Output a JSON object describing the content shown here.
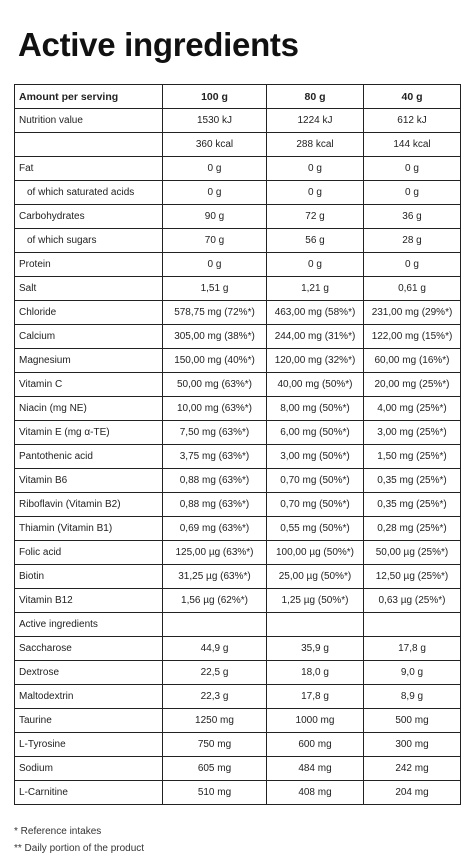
{
  "title": "Active ingredients",
  "header": [
    "Amount per serving",
    "100 g",
    "80 g",
    "40 g"
  ],
  "rows": [
    {
      "name": "Nutrition value",
      "v": [
        "1530 kJ",
        "1224 kJ",
        "612 kJ"
      ]
    },
    {
      "name": "",
      "v": [
        "360 kcal",
        "288 kcal",
        "144 kcal"
      ]
    },
    {
      "name": "Fat",
      "v": [
        "0 g",
        "0 g",
        "0 g"
      ]
    },
    {
      "name": "of which saturated acids",
      "sub": true,
      "v": [
        "0 g",
        "0 g",
        "0 g"
      ]
    },
    {
      "name": "Carbohydrates",
      "v": [
        "90 g",
        "72 g",
        "36 g"
      ]
    },
    {
      "name": "of which sugars",
      "sub": true,
      "v": [
        "70 g",
        "56 g",
        "28 g"
      ]
    },
    {
      "name": "Protein",
      "v": [
        "0 g",
        "0 g",
        "0 g"
      ]
    },
    {
      "name": "Salt",
      "v": [
        "1,51 g",
        "1,21 g",
        "0,61 g"
      ]
    },
    {
      "name": "Chloride",
      "v": [
        "578,75 mg (72%*)",
        "463,00 mg (58%*)",
        "231,00 mg (29%*)"
      ]
    },
    {
      "name": "Calcium",
      "v": [
        "305,00 mg (38%*)",
        "244,00 mg (31%*)",
        "122,00 mg (15%*)"
      ]
    },
    {
      "name": "Magnesium",
      "v": [
        "150,00 mg (40%*)",
        "120,00 mg (32%*)",
        "60,00 mg (16%*)"
      ]
    },
    {
      "name": "Vitamin C",
      "v": [
        "50,00 mg (63%*)",
        "40,00 mg (50%*)",
        "20,00 mg (25%*)"
      ]
    },
    {
      "name": "Niacin (mg NE)",
      "v": [
        "10,00 mg (63%*)",
        "8,00 mg (50%*)",
        "4,00 mg (25%*)"
      ]
    },
    {
      "name": "Vitamin E (mg α-TE)",
      "v": [
        "7,50 mg (63%*)",
        "6,00 mg (50%*)",
        "3,00 mg (25%*)"
      ]
    },
    {
      "name": "Pantothenic acid",
      "v": [
        "3,75 mg (63%*)",
        "3,00 mg (50%*)",
        "1,50 mg (25%*)"
      ]
    },
    {
      "name": "Vitamin B6",
      "v": [
        "0,88 mg (63%*)",
        "0,70 mg (50%*)",
        "0,35 mg (25%*)"
      ]
    },
    {
      "name": "Riboflavin (Vitamin B2)",
      "v": [
        "0,88 mg (63%*)",
        "0,70 mg (50%*)",
        "0,35 mg (25%*)"
      ]
    },
    {
      "name": "Thiamin (Vitamin B1)",
      "v": [
        "0,69 mg (63%*)",
        "0,55 mg (50%*)",
        "0,28 mg (25%*)"
      ]
    },
    {
      "name": "Folic acid",
      "v": [
        "125,00 µg (63%*)",
        "100,00 µg (50%*)",
        "50,00 µg (25%*)"
      ]
    },
    {
      "name": "Biotin",
      "v": [
        "31,25 µg (63%*)",
        "25,00 µg (50%*)",
        "12,50 µg (25%*)"
      ]
    },
    {
      "name": "Vitamin B12",
      "v": [
        "1,56 µg (62%*)",
        "1,25 µg (50%*)",
        "0,63 µg (25%*)"
      ]
    },
    {
      "name": "Active ingredients",
      "v": [
        "",
        "",
        ""
      ]
    },
    {
      "name": "Saccharose",
      "v": [
        "44,9 g",
        "35,9 g",
        "17,8 g"
      ]
    },
    {
      "name": "Dextrose",
      "v": [
        "22,5 g",
        "18,0 g",
        "9,0 g"
      ]
    },
    {
      "name": "Maltodextrin",
      "v": [
        "22,3 g",
        "17,8 g",
        "8,9 g"
      ]
    },
    {
      "name": "Taurine",
      "v": [
        "1250 mg",
        "1000 mg",
        "500 mg"
      ]
    },
    {
      "name": "L-Tyrosine",
      "v": [
        "750 mg",
        "600 mg",
        "300 mg"
      ]
    },
    {
      "name": "Sodium",
      "v": [
        "605 mg",
        "484 mg",
        "242 mg"
      ]
    },
    {
      "name": "L-Carnitine",
      "v": [
        "510 mg",
        "408 mg",
        "204 mg"
      ]
    }
  ],
  "footnotes": [
    "* Reference intakes",
    "** Daily portion of the product"
  ]
}
